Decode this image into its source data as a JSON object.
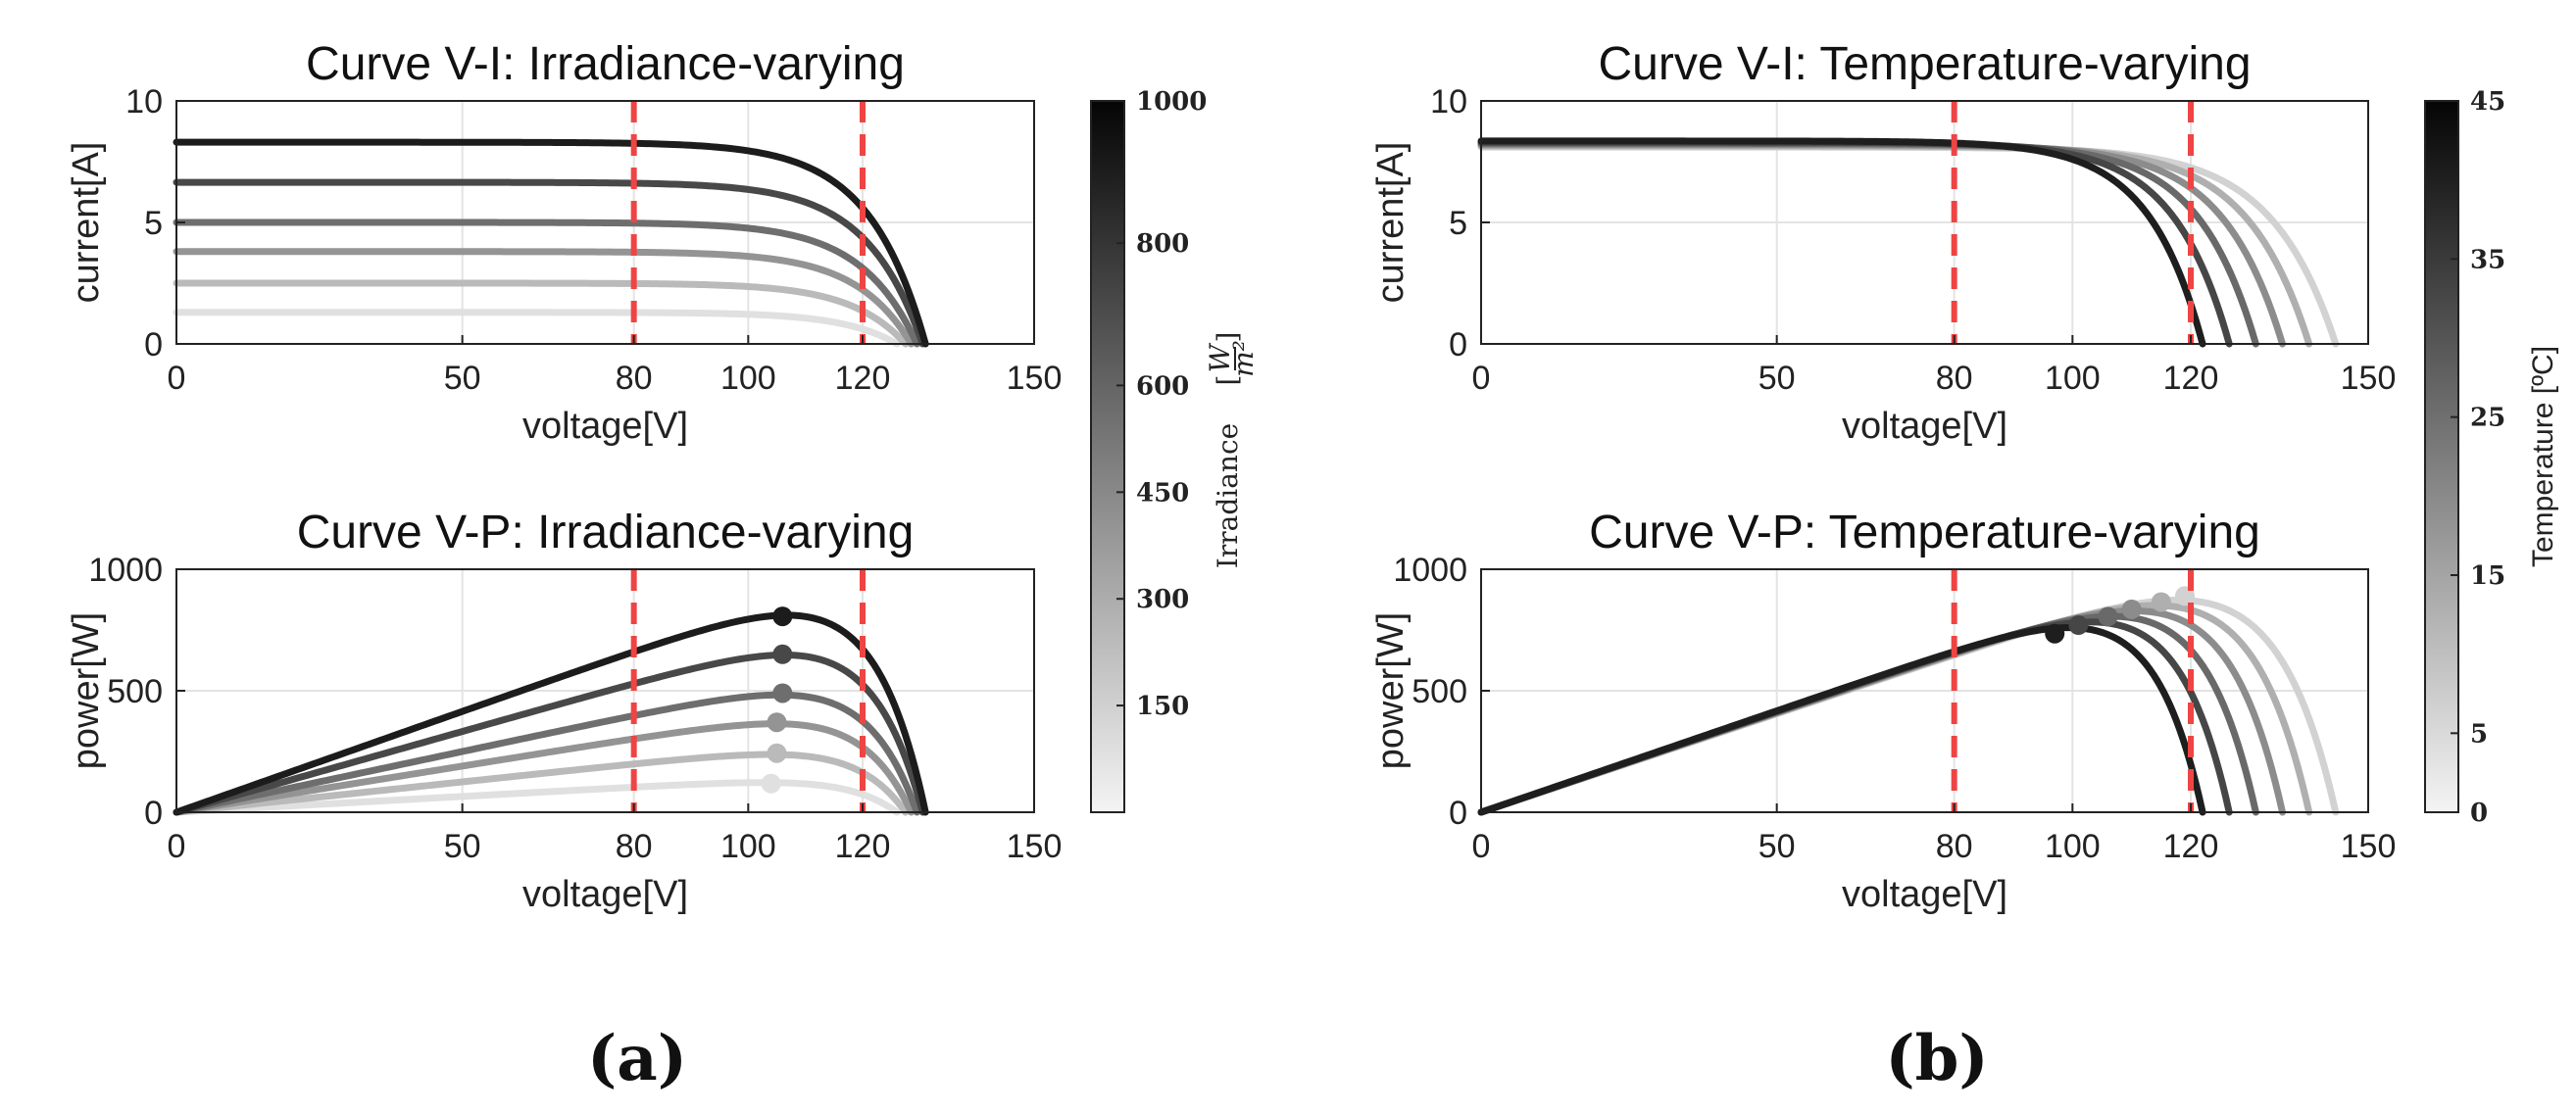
{
  "panel_labels": [
    "(a)",
    "(b)"
  ],
  "colorbars": {
    "irradiance": {
      "label": "Irradiance",
      "unit_num": "W",
      "unit_den": "m²",
      "ticks": [
        "1000",
        "800",
        "600",
        "450",
        "300",
        "150"
      ],
      "tick_values": [
        1000,
        800,
        600,
        450,
        300,
        150
      ],
      "range": [
        0,
        1000
      ]
    },
    "temperature": {
      "label": "Temperature [ºC]",
      "ticks": [
        "45",
        "35",
        "25",
        "15",
        "5",
        "0"
      ],
      "tick_values": [
        45,
        35,
        25,
        15,
        5,
        0
      ],
      "range": [
        0,
        45
      ]
    }
  },
  "colors": {
    "reference_lines": "#ef4444",
    "grid": "#e3e3e3",
    "irradiance_levels": [
      "#e0e0e0",
      "#bababa",
      "#949494",
      "#6e6e6e",
      "#484848",
      "#1c1c1c"
    ],
    "temperature_levels": [
      "#d2d2d2",
      "#afafaf",
      "#8c8c8c",
      "#696969",
      "#464646",
      "#1e1e1e"
    ]
  },
  "chart_data": [
    {
      "id": "vi-irr",
      "type": "line",
      "title": "Curve V-I: Irradiance-varying",
      "xlabel": "voltage[V]",
      "ylabel": "current[A]",
      "xlim": [
        0,
        150
      ],
      "ylim": [
        0,
        10
      ],
      "xticks": [
        0,
        50,
        80,
        100,
        120,
        150
      ],
      "yticks": [
        0,
        5,
        10
      ],
      "grid": true,
      "reference_x": [
        80,
        120
      ],
      "colorbar": "irradiance",
      "series": [
        {
          "level": 200,
          "voc": 126.0,
          "isc": 1.3,
          "mpp": [
            104,
            1.13
          ]
        },
        {
          "level": 300,
          "voc": 127.5,
          "isc": 2.5,
          "mpp": [
            105,
            2.31
          ]
        },
        {
          "level": 450,
          "voc": 128.5,
          "isc": 3.8,
          "mpp": [
            105,
            3.52
          ]
        },
        {
          "level": 600,
          "voc": 129.5,
          "isc": 5.0,
          "mpp": [
            106,
            4.62
          ]
        },
        {
          "level": 800,
          "voc": 130.5,
          "isc": 6.65,
          "mpp": [
            106,
            6.13
          ]
        },
        {
          "level": 1000,
          "voc": 131.0,
          "isc": 8.3,
          "mpp": [
            106,
            7.6
          ]
        }
      ]
    },
    {
      "id": "vi-temp",
      "type": "line",
      "title": "Curve V-I: Temperature-varying",
      "xlabel": "voltage[V]",
      "ylabel": "current[A]",
      "xlim": [
        0,
        150
      ],
      "ylim": [
        0,
        10
      ],
      "xticks": [
        0,
        50,
        80,
        100,
        120,
        150
      ],
      "yticks": [
        0,
        5,
        10
      ],
      "grid": true,
      "reference_x": [
        80,
        120
      ],
      "colorbar": "temperature",
      "series": [
        {
          "level": 0,
          "voc": 144.5,
          "isc": 8.1,
          "mpp": [
            119,
            7.5
          ]
        },
        {
          "level": 9,
          "voc": 140.0,
          "isc": 8.15,
          "mpp": [
            115,
            7.5
          ]
        },
        {
          "level": 18,
          "voc": 135.5,
          "isc": 8.2,
          "mpp": [
            110,
            7.6
          ]
        },
        {
          "level": 27,
          "voc": 131.0,
          "isc": 8.25,
          "mpp": [
            106,
            7.6
          ]
        },
        {
          "level": 36,
          "voc": 126.5,
          "isc": 8.3,
          "mpp": [
            101,
            7.6
          ]
        },
        {
          "level": 45,
          "voc": 122.0,
          "isc": 8.35,
          "mpp": [
            97,
            7.6
          ]
        }
      ]
    },
    {
      "id": "vp-irr",
      "type": "line",
      "title": "Curve V-P: Irradiance-varying",
      "xlabel": "voltage[V]",
      "ylabel": "power[W]",
      "xlim": [
        0,
        150
      ],
      "ylim": [
        0,
        1000
      ],
      "xticks": [
        0,
        50,
        80,
        100,
        120,
        150
      ],
      "yticks": [
        0,
        500,
        1000
      ],
      "grid": true,
      "reference_x": [
        80,
        120
      ],
      "colorbar": "irradiance",
      "series": [
        {
          "level": 200,
          "voc": 126.0,
          "isc": 1.3,
          "mpp": [
            104,
            118
          ]
        },
        {
          "level": 300,
          "voc": 127.5,
          "isc": 2.5,
          "mpp": [
            105,
            243
          ]
        },
        {
          "level": 450,
          "voc": 128.5,
          "isc": 3.8,
          "mpp": [
            105,
            370
          ]
        },
        {
          "level": 600,
          "voc": 129.5,
          "isc": 5.0,
          "mpp": [
            106,
            490
          ]
        },
        {
          "level": 800,
          "voc": 130.5,
          "isc": 6.65,
          "mpp": [
            106,
            650
          ]
        },
        {
          "level": 1000,
          "voc": 131.0,
          "isc": 8.3,
          "mpp": [
            106,
            806
          ]
        }
      ]
    },
    {
      "id": "vp-temp",
      "type": "line",
      "title": "Curve V-P: Temperature-varying",
      "xlabel": "voltage[V]",
      "ylabel": "power[W]",
      "xlim": [
        0,
        150
      ],
      "ylim": [
        0,
        1000
      ],
      "xticks": [
        0,
        50,
        80,
        100,
        120,
        150
      ],
      "yticks": [
        0,
        500,
        1000
      ],
      "grid": true,
      "reference_x": [
        80,
        120
      ],
      "colorbar": "temperature",
      "series": [
        {
          "level": 0,
          "voc": 144.5,
          "isc": 8.1,
          "mpp": [
            119,
            890
          ]
        },
        {
          "level": 9,
          "voc": 140.0,
          "isc": 8.15,
          "mpp": [
            115,
            865
          ]
        },
        {
          "level": 18,
          "voc": 135.5,
          "isc": 8.2,
          "mpp": [
            110,
            835
          ]
        },
        {
          "level": 27,
          "voc": 131.0,
          "isc": 8.25,
          "mpp": [
            106,
            805
          ]
        },
        {
          "level": 36,
          "voc": 126.5,
          "isc": 8.3,
          "mpp": [
            101,
            770
          ]
        },
        {
          "level": 45,
          "voc": 122.0,
          "isc": 8.35,
          "mpp": [
            97,
            735
          ]
        }
      ]
    }
  ]
}
